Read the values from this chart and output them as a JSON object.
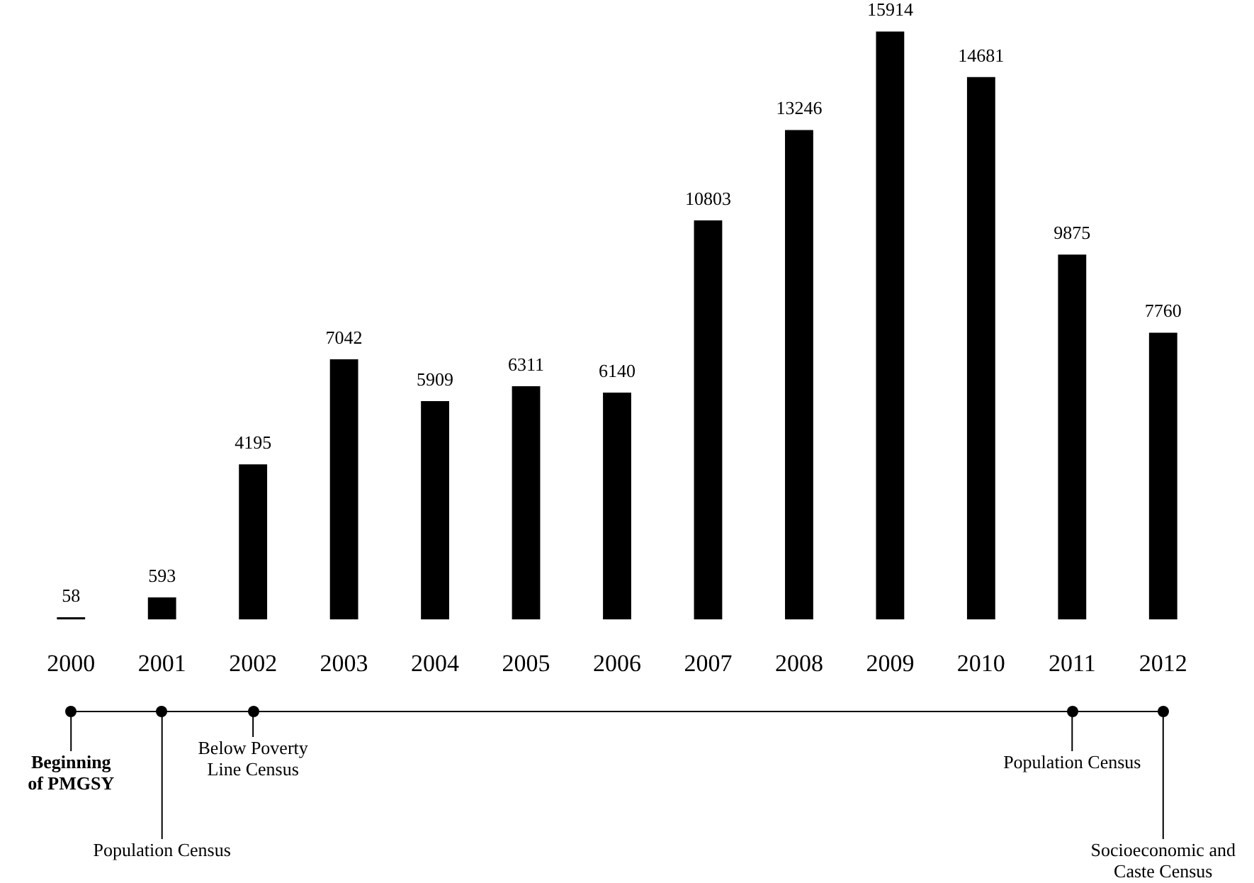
{
  "chart_data": {
    "type": "bar",
    "categories": [
      "2000",
      "2001",
      "2002",
      "2003",
      "2004",
      "2005",
      "2006",
      "2007",
      "2008",
      "2009",
      "2010",
      "2011",
      "2012"
    ],
    "values": [
      58,
      593,
      4195,
      7042,
      5909,
      6311,
      6140,
      10803,
      13246,
      15914,
      14681,
      9875,
      7760
    ],
    "color": "#000000",
    "data_labels": true,
    "tick_labels": "x",
    "grid": false,
    "legend": false,
    "annotations": [
      {
        "text": "Beginning of PMGSY",
        "x": "2000"
      },
      {
        "text": "Population Census",
        "x": "2001"
      },
      {
        "text": "Below Poverty Line Census",
        "x": "2002"
      },
      {
        "text": "Population Census",
        "x": "2011"
      },
      {
        "text": "Socioeconomic and Caste Census",
        "x": "2012"
      }
    ]
  }
}
